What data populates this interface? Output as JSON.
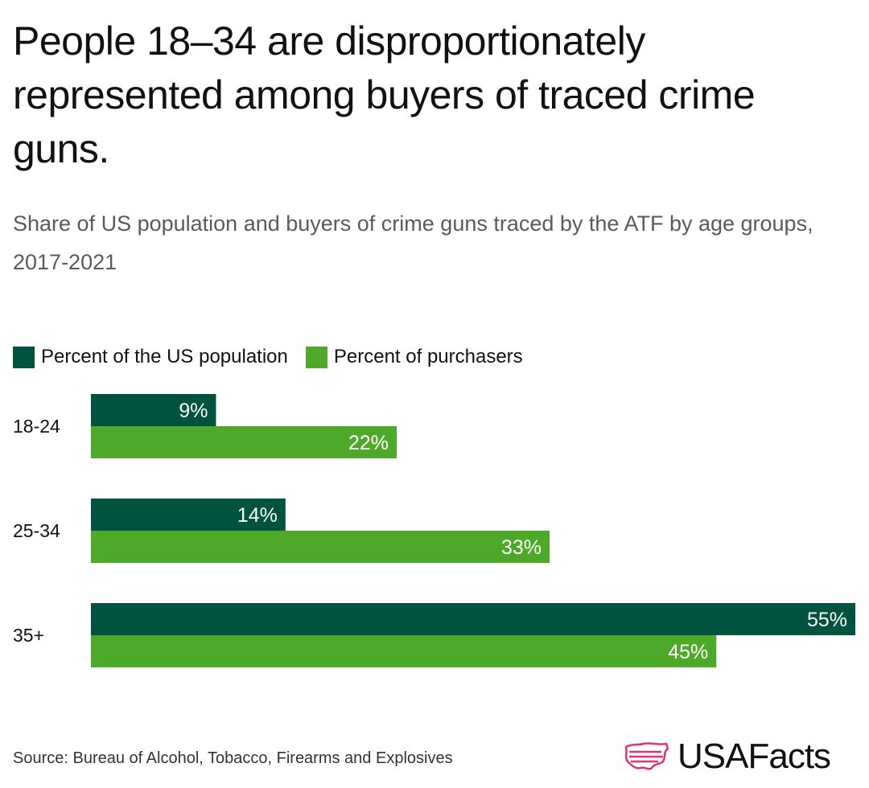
{
  "title": "People 18–34 are disproportionately represented among buyers of traced crime guns.",
  "subtitle": "Share of US population and buyers of crime guns traced by the ATF by age groups, 2017-2021",
  "source": "Source: Bureau of Alcohol, Tobacco, Firearms and Explosives",
  "logo": {
    "text": "USAFacts",
    "icon": "usa-map-flag-icon"
  },
  "colors": {
    "population": "#00543f",
    "purchasers": "#4ea829",
    "logo_accent": "#e0317a",
    "label_text": "#ffffff"
  },
  "chart_data": {
    "type": "bar",
    "orientation": "horizontal",
    "title": "People 18–34 are disproportionately represented among buyers of traced crime guns.",
    "subtitle": "Share of US population and buyers of crime guns traced by the ATF by age groups, 2017-2021",
    "categories": [
      "18-24",
      "25-34",
      "35+"
    ],
    "series": [
      {
        "name": "Percent of the US population",
        "values": [
          9,
          14,
          55
        ],
        "labels": [
          "9%",
          "14%",
          "55%"
        ]
      },
      {
        "name": "Percent of purchasers",
        "values": [
          22,
          33,
          45
        ],
        "labels": [
          "22%",
          "33%",
          "45%"
        ]
      }
    ],
    "xlim": [
      0,
      55
    ],
    "grid": false,
    "legend": "top-left"
  }
}
